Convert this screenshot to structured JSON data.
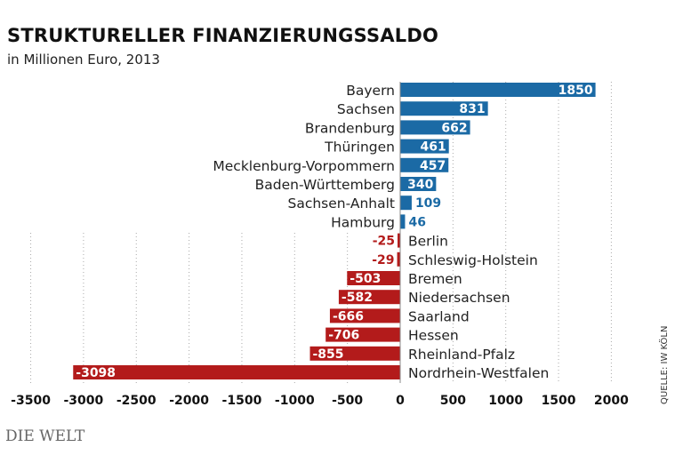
{
  "chart_data": {
    "type": "bar",
    "orientation": "horizontal",
    "title": "STRUKTURELLER FINANZIERUNGSSALDO",
    "subtitle": "in Millionen Euro, 2013",
    "categories": [
      "Bayern",
      "Sachsen",
      "Brandenburg",
      "Thüringen",
      "Mecklenburg-Vorpommern",
      "Baden-Württemberg",
      "Sachsen-Anhalt",
      "Hamburg",
      "Berlin",
      "Schleswig-Holstein",
      "Bremen",
      "Niedersachsen",
      "Saarland",
      "Hessen",
      "Rheinland-Pfalz",
      "Nordrhein-Westfalen"
    ],
    "values": [
      1850,
      831,
      662,
      461,
      457,
      340,
      109,
      46,
      -25,
      -29,
      -503,
      -582,
      -666,
      -706,
      -855,
      -3098
    ],
    "xlim": [
      -3500,
      2000
    ],
    "xticks": [
      -3500,
      -3000,
      -2500,
      -2000,
      -1500,
      -1000,
      -500,
      0,
      500,
      1000,
      1500,
      2000
    ],
    "grid": "vertical dotted",
    "colors": {
      "positive": "#1b6aa5",
      "negative": "#b31b1b"
    }
  },
  "source": "QUELLE: IW KÖLN",
  "logo": "DIE WELT"
}
